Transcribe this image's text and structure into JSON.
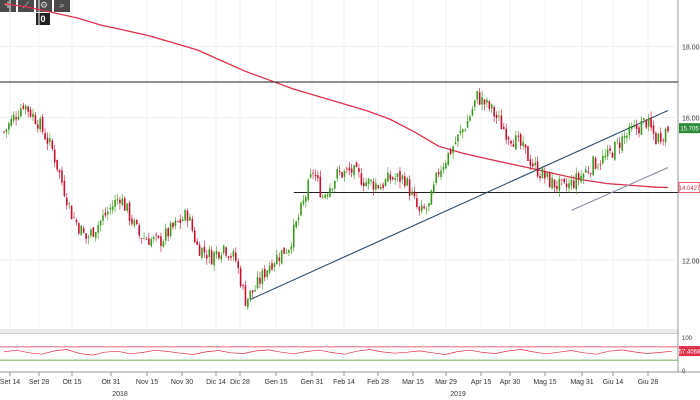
{
  "toolbar": {
    "buttons": [
      {
        "icon": "crosshair-icon",
        "glyph": "✛"
      },
      {
        "icon": "draw-line-icon",
        "glyph": "⟋"
      },
      {
        "icon": "settings-icon",
        "glyph": "⚙"
      },
      {
        "icon": "zoom-icon",
        "glyph": "⌕"
      }
    ],
    "badge": "0"
  },
  "chart_data": {
    "type": "candlestick",
    "title": "",
    "xlabel": "",
    "ylabel": "",
    "ylim": [
      10.1,
      19.3
    ],
    "y_ticks": [
      "18.00",
      "16.00",
      "12.00"
    ],
    "x_tick_labels": [
      "Set 14",
      "Set 28",
      "Ott 15",
      "Ott 31",
      "Nov 15",
      "Nov 30",
      "Dic 14",
      "Dic 28",
      "Gen 15",
      "Gen 31",
      "Feb 14",
      "Feb 28",
      "Mar 15",
      "Mar 29",
      "Apr 15",
      "Apr 30",
      "Mag 15",
      "Mag 31",
      "Giu 14",
      "Giu 28"
    ],
    "x_year_labels": [
      "2018",
      "2019"
    ],
    "last_price_label": "15.705",
    "moving_average_label": "14.0427",
    "price_keypoints": [
      [
        0,
        15.6
      ],
      [
        8,
        16.4
      ],
      [
        14,
        15.9
      ],
      [
        20,
        15.1
      ],
      [
        28,
        13.3
      ],
      [
        34,
        12.6
      ],
      [
        40,
        13.1
      ],
      [
        48,
        13.8
      ],
      [
        56,
        12.7
      ],
      [
        64,
        12.5
      ],
      [
        70,
        12.9
      ],
      [
        76,
        13.3
      ],
      [
        80,
        12.4
      ],
      [
        86,
        12.1
      ],
      [
        91,
        12.4
      ],
      [
        96,
        12.0
      ],
      [
        100,
        10.9
      ],
      [
        104,
        11.2
      ],
      [
        110,
        11.9
      ],
      [
        118,
        12.4
      ],
      [
        124,
        13.6
      ],
      [
        128,
        14.5
      ],
      [
        132,
        13.8
      ],
      [
        138,
        14.4
      ],
      [
        144,
        14.5
      ],
      [
        150,
        14.2
      ],
      [
        156,
        14.1
      ],
      [
        160,
        14.3
      ],
      [
        166,
        14.3
      ],
      [
        172,
        13.3
      ],
      [
        176,
        13.5
      ],
      [
        180,
        14.5
      ],
      [
        186,
        15.2
      ],
      [
        192,
        15.9
      ],
      [
        196,
        16.6
      ],
      [
        202,
        16.2
      ],
      [
        208,
        15.6
      ],
      [
        214,
        15.2
      ],
      [
        220,
        14.6
      ],
      [
        226,
        14.2
      ],
      [
        232,
        14.0
      ],
      [
        238,
        14.3
      ],
      [
        244,
        14.7
      ],
      [
        250,
        14.9
      ],
      [
        256,
        15.4
      ],
      [
        262,
        15.7
      ],
      [
        266,
        15.9
      ],
      [
        270,
        15.4
      ],
      [
        275,
        15.7
      ]
    ],
    "moving_average": [
      [
        0,
        19.2
      ],
      [
        10,
        19.1
      ],
      [
        20,
        18.95
      ],
      [
        30,
        18.8
      ],
      [
        40,
        18.6
      ],
      [
        50,
        18.45
      ],
      [
        60,
        18.3
      ],
      [
        70,
        18.1
      ],
      [
        80,
        17.9
      ],
      [
        90,
        17.6
      ],
      [
        100,
        17.3
      ],
      [
        110,
        17.05
      ],
      [
        120,
        16.8
      ],
      [
        130,
        16.6
      ],
      [
        140,
        16.4
      ],
      [
        150,
        16.2
      ],
      [
        160,
        15.95
      ],
      [
        170,
        15.6
      ],
      [
        180,
        15.2
      ],
      [
        190,
        15.0
      ],
      [
        200,
        14.85
      ],
      [
        210,
        14.7
      ],
      [
        220,
        14.55
      ],
      [
        230,
        14.4
      ],
      [
        240,
        14.25
      ],
      [
        250,
        14.15
      ],
      [
        260,
        14.1
      ],
      [
        270,
        14.05
      ],
      [
        275,
        14.04
      ]
    ],
    "horizontal_lines": [
      17.0,
      13.9
    ],
    "trendlines": [
      {
        "from": [
          102,
          10.9
        ],
        "to": [
          275,
          16.2
        ],
        "style": "dark-blue"
      },
      {
        "from": [
          235,
          13.4
        ],
        "to": [
          275,
          14.6
        ],
        "style": "gray"
      }
    ],
    "oscillator": {
      "y_ticks": [
        "100",
        "0"
      ],
      "last_value_label": "57.4068",
      "upper_line": 70,
      "lower_line": 30,
      "values": [
        55,
        60,
        52,
        48,
        58,
        62,
        50,
        45,
        54,
        57,
        49,
        53,
        60,
        56,
        51,
        47,
        55,
        59,
        52,
        50,
        58,
        61,
        54,
        49,
        56,
        60,
        53,
        48,
        57,
        62,
        55,
        51,
        54,
        58,
        52,
        47,
        56,
        60,
        53,
        50,
        58,
        62,
        55,
        49,
        54,
        59,
        52,
        48,
        57,
        61,
        55,
        50,
        53,
        57
      ]
    }
  }
}
